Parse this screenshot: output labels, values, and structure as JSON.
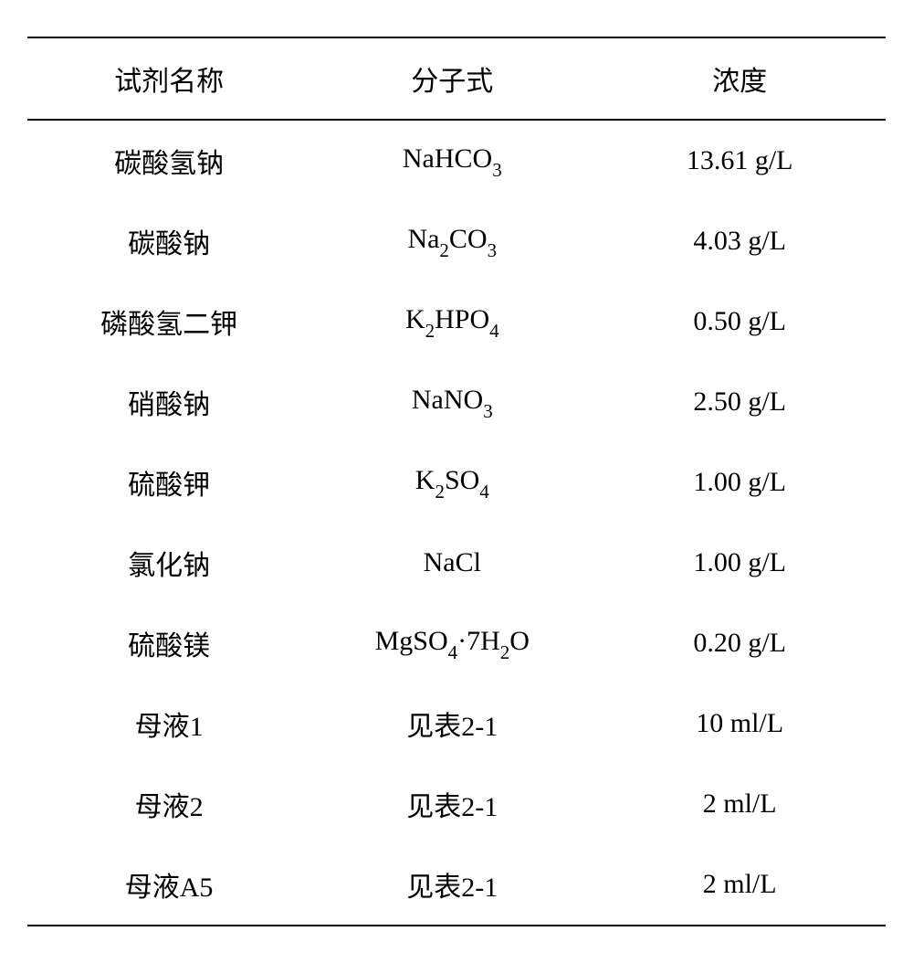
{
  "table": {
    "headers": [
      "试剂名称",
      "分子式",
      "浓度"
    ],
    "columns": [
      "name",
      "formula",
      "concentration"
    ],
    "rows": [
      {
        "name": "碳酸氢钠",
        "formula_html": "NaHCO<span class='sub'>3</span>",
        "concentration": "13.61 g/L"
      },
      {
        "name": "碳酸钠",
        "formula_html": "Na<span class='sub'>2</span>CO<span class='sub'>3</span>",
        "concentration": "4.03 g/L"
      },
      {
        "name": "磷酸氢二钾",
        "formula_html": "K<span class='sub'>2</span>HPO<span class='sub'>4</span>",
        "concentration": "0.50 g/L"
      },
      {
        "name": "硝酸钠",
        "formula_html": "NaNO<span class='sub'>3</span>",
        "concentration": "2.50 g/L"
      },
      {
        "name": "硫酸钾",
        "formula_html": "K<span class='sub'>2</span>SO<span class='sub'>4</span>",
        "concentration": "1.00 g/L"
      },
      {
        "name": "氯化钠",
        "formula_html": "NaCl",
        "concentration": "1.00 g/L"
      },
      {
        "name": "硫酸镁",
        "formula_html": "MgSO<span class='sub'>4</span>·7H<span class='sub'>2</span>O",
        "concentration": "0.20 g/L"
      },
      {
        "name": "母液1",
        "formula_html": "见表2-1",
        "concentration": "10 ml/L"
      },
      {
        "name": "母液2",
        "formula_html": "见表2-1",
        "concentration": "2 ml/L"
      },
      {
        "name": "母液A5",
        "formula_html": "见表2-1",
        "concentration": "2 ml/L"
      }
    ],
    "style": {
      "border_color": "#000000",
      "background_color": "#ffffff",
      "text_color": "#000000",
      "header_fontsize": 30,
      "cell_fontsize": 30,
      "border_width": 2
    }
  }
}
